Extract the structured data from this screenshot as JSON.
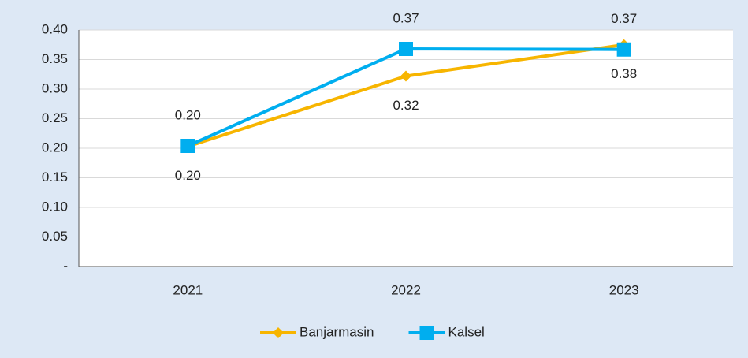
{
  "chart_data": {
    "type": "line",
    "categories": [
      "2021",
      "2022",
      "2023"
    ],
    "series": [
      {
        "name": "Banjarmasin",
        "color": "#f7b500",
        "marker": "diamond",
        "label_position": "below",
        "values": [
          0.203,
          0.322,
          0.375
        ],
        "value_labels": [
          "0.20",
          "0.32",
          "0.38"
        ]
      },
      {
        "name": "Kalsel",
        "color": "#00aeef",
        "marker": "square",
        "label_position": "above",
        "values": [
          0.204,
          0.368,
          0.367
        ],
        "value_labels": [
          "0.20",
          "0.37",
          "0.37"
        ]
      }
    ],
    "ylim": [
      0,
      0.4
    ],
    "yticks": [
      {
        "value": 0,
        "label": "-"
      },
      0.05,
      {
        "value": 0.1,
        "label": "0.10"
      },
      0.15,
      {
        "value": 0.2,
        "label": "0.20"
      },
      0.25,
      {
        "value": 0.3,
        "label": "0.30"
      },
      0.35,
      {
        "value": 0.4,
        "label": "0.40"
      }
    ],
    "grid": true,
    "legend": "bottom"
  }
}
